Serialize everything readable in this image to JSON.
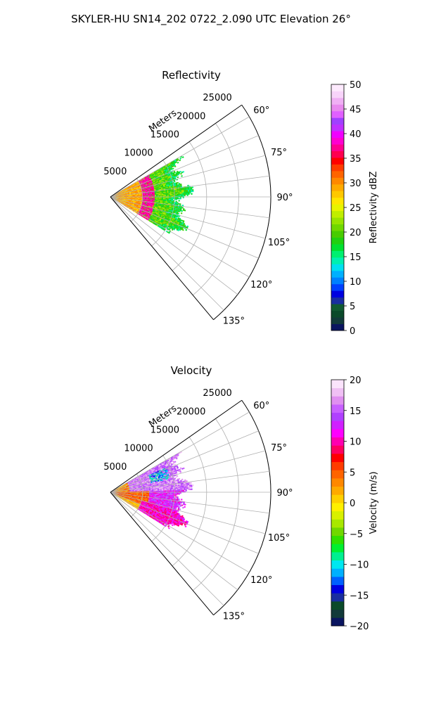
{
  "suptitle": "SKYLER-HU  SN14_202  0722_2.090 UTC Elevation 26°",
  "colors": {
    "background": "#ffffff",
    "grid": "#b0b0b0",
    "frame": "#000000"
  },
  "chart_data": [
    {
      "type": "polar-sector",
      "title": "Reflectivity",
      "field": "reflectivity",
      "radial_axis_label": "Meters",
      "r_ticks": [
        "5000",
        "10000",
        "15000",
        "20000",
        "25000"
      ],
      "r_range": [
        0,
        25000
      ],
      "theta_ticks": [
        "60°",
        "75°",
        "90°",
        "105°",
        "120°",
        "135°"
      ],
      "theta_tick_values": [
        60,
        75,
        90,
        105,
        120,
        135
      ],
      "theta_range": [
        55,
        140
      ],
      "grid": true,
      "colorbar": {
        "label": "Reflectivity dBZ",
        "min": 0,
        "max": 50,
        "ticks": [
          "0",
          "5",
          "10",
          "15",
          "20",
          "25",
          "30",
          "35",
          "40",
          "45",
          "50"
        ],
        "colors": [
          "#0a1560",
          "#123a3a",
          "#0b4a2a",
          "#115a32",
          "#1a2ea0",
          "#0000e0",
          "#0040ff",
          "#0080ff",
          "#00b0ff",
          "#00e0f0",
          "#00f0b0",
          "#00f070",
          "#00e030",
          "#20d010",
          "#48cc00",
          "#70d800",
          "#98e400",
          "#c0ee00",
          "#e8f400",
          "#ffe600",
          "#ffc800",
          "#ffaa00",
          "#ff8800",
          "#ff6400",
          "#ff3c00",
          "#ff0000",
          "#ff0050",
          "#ff0090",
          "#ff00d0",
          "#f000ff",
          "#c030ff",
          "#a040ff",
          "#e060ff",
          "#e88aee",
          "#f0b0f4",
          "#f8d4fa",
          "#fdeafd"
        ]
      },
      "echo": {
        "r_extent": [
          0,
          13000
        ],
        "theta_extent": [
          60,
          122
        ],
        "band_r": [
          5000,
          7000
        ],
        "band_value": 37,
        "inner_value": 29,
        "outer_value": 20,
        "edge_value": 14
      }
    },
    {
      "type": "polar-sector",
      "title": "Velocity",
      "field": "velocity",
      "radial_axis_label": "Meters",
      "r_ticks": [
        "5000",
        "10000",
        "15000",
        "20000",
        "25000"
      ],
      "r_range": [
        0,
        25000
      ],
      "theta_ticks": [
        "60°",
        "75°",
        "90°",
        "105°",
        "120°",
        "135°"
      ],
      "theta_tick_values": [
        60,
        75,
        90,
        105,
        120,
        135
      ],
      "theta_range": [
        55,
        140
      ],
      "grid": true,
      "colorbar": {
        "label": "Velocity (m/s)",
        "min": -20,
        "max": 20,
        "ticks": [
          "−20",
          "−15",
          "−10",
          "−5",
          "0",
          "5",
          "10",
          "15",
          "20"
        ],
        "colors": [
          "#0a1560",
          "#123a3a",
          "#0b4a2a",
          "#1a2ea0",
          "#0000e0",
          "#0060ff",
          "#00b0ff",
          "#00e8f0",
          "#00f090",
          "#00f030",
          "#30e000",
          "#70d800",
          "#a8e800",
          "#d8f000",
          "#fff000",
          "#ffd000",
          "#ffaa00",
          "#ff8800",
          "#ff6400",
          "#ff3c00",
          "#ff0000",
          "#ff0060",
          "#ff00b0",
          "#ff00ff",
          "#d020ff",
          "#b040ff",
          "#c860ff",
          "#e090f0",
          "#f0c0f4",
          "#fbe4fc"
        ]
      },
      "echo": {
        "r_extent": [
          0,
          13000
        ],
        "theta_extent": [
          60,
          122
        ],
        "near_value": 2,
        "mid_value": 11,
        "far_value": 16,
        "low_side_value": 3,
        "patch_value": -11
      }
    }
  ]
}
